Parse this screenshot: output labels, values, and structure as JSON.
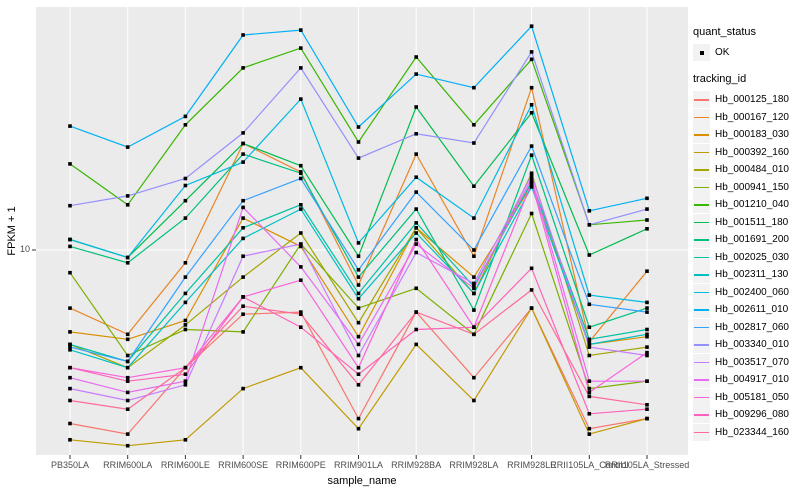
{
  "chart_data": {
    "type": "line",
    "xlabel": "sample_name",
    "ylabel": "FPKM + 1",
    "y_scale": "log10",
    "y_tick_labels": [
      "10"
    ],
    "y_tick_values": [
      10
    ],
    "grid": true,
    "legend_position": "right",
    "marker": "black-square",
    "quant_status_title": "quant_status",
    "quant_status_ok_label": "OK",
    "tracking_id_title": "tracking_id",
    "categories": [
      "PB350LA",
      "RRIM600LA",
      "RRIM600LE",
      "RRIM600SE",
      "RRIM600PE",
      "RRIM901LA",
      "RRIM928BA",
      "RRIM928LA",
      "RRIM928LE",
      "RRII105LA_Control",
      "RRII105LA_Stressed"
    ],
    "series": [
      {
        "name": "Hb_000125_180",
        "color": "#F8766D",
        "values": [
          2.4,
          2.2,
          3.8,
          5.9,
          6.0,
          2.5,
          6.0,
          3.5,
          6.2,
          2.3,
          2.5
        ]
      },
      {
        "name": "Hb_000167_120",
        "color": "#E88526",
        "values": [
          6.2,
          5.0,
          9.0,
          24.0,
          19.0,
          7.5,
          22.0,
          9.5,
          38.0,
          4.7,
          8.4
        ]
      },
      {
        "name": "Hb_000183_030",
        "color": "#D89000",
        "values": [
          5.1,
          4.8,
          5.6,
          13.0,
          10.3,
          4.9,
          12.0,
          8.0,
          17.0,
          4.6,
          4.9
        ]
      },
      {
        "name": "Hb_000392_160",
        "color": "#C09B00",
        "values": [
          2.1,
          2.0,
          2.1,
          3.2,
          3.8,
          2.3,
          4.6,
          2.9,
          6.2,
          2.2,
          2.5
        ]
      },
      {
        "name": "Hb_000484_010",
        "color": "#A3A500",
        "values": [
          4.6,
          3.8,
          5.4,
          8.0,
          11.5,
          5.5,
          12.0,
          7.0,
          18.8,
          4.2,
          4.5
        ]
      },
      {
        "name": "Hb_000941_150",
        "color": "#7CAE00",
        "values": [
          8.3,
          4.2,
          5.2,
          5.1,
          10.5,
          6.2,
          7.3,
          5.0,
          13.5,
          3.2,
          3.4
        ]
      },
      {
        "name": "Hb_001210_040",
        "color": "#39B600",
        "values": [
          20.3,
          14.5,
          28.0,
          44.7,
          52.6,
          24.3,
          48.9,
          28.0,
          48.0,
          12.3,
          12.8
        ]
      },
      {
        "name": "Hb_001511_180",
        "color": "#00BB4E",
        "values": [
          10.9,
          9.4,
          15.0,
          24.0,
          20.0,
          9.5,
          32.4,
          16.9,
          30.9,
          9.6,
          11.9
        ]
      },
      {
        "name": "Hb_001691_200",
        "color": "#00BF7D",
        "values": [
          10.3,
          9.0,
          13.0,
          22.0,
          18.8,
          8.0,
          14.0,
          6.1,
          21.8,
          5.3,
          6.2
        ]
      },
      {
        "name": "Hb_002025_030",
        "color": "#00C1A3",
        "values": [
          4.6,
          4.0,
          7.0,
          12.0,
          14.5,
          7.0,
          12.5,
          7.4,
          17.5,
          4.8,
          5.2
        ]
      },
      {
        "name": "Hb_002311_130",
        "color": "#00BFC4",
        "values": [
          4.4,
          3.8,
          6.5,
          11.0,
          14.0,
          6.7,
          11.5,
          7.0,
          16.8,
          4.6,
          5.0
        ]
      },
      {
        "name": "Hb_002400_060",
        "color": "#00BAE0",
        "values": [
          10.9,
          9.4,
          17.0,
          20.6,
          34.6,
          10.6,
          18.2,
          13.0,
          33.0,
          6.9,
          6.5
        ]
      },
      {
        "name": "Hb_002611_010",
        "color": "#00B0F6",
        "values": [
          27.7,
          23.3,
          30.0,
          58.6,
          61.0,
          27.5,
          42.5,
          38.0,
          63.0,
          13.8,
          15.3
        ]
      },
      {
        "name": "Hb_002817_060",
        "color": "#35A2FF",
        "values": [
          4.5,
          4.0,
          8.0,
          15.0,
          18.0,
          8.5,
          16.1,
          10.0,
          23.5,
          6.4,
          6.0
        ]
      },
      {
        "name": "Hb_003340_010",
        "color": "#9590FF",
        "values": [
          14.4,
          15.6,
          18.0,
          26.2,
          44.7,
          21.3,
          26.0,
          24.1,
          51.0,
          12.3,
          14.0
        ]
      },
      {
        "name": "Hb_003517_070",
        "color": "#C77CFF",
        "values": [
          3.2,
          2.9,
          3.3,
          9.5,
          10.5,
          4.2,
          9.8,
          7.6,
          18.5,
          4.5,
          4.2
        ]
      },
      {
        "name": "Hb_004917_010",
        "color": "#E76BF3",
        "values": [
          3.5,
          3.1,
          3.4,
          14.2,
          8.7,
          4.6,
          10.5,
          7.3,
          18.0,
          3.4,
          3.4
        ]
      },
      {
        "name": "Hb_005181_050",
        "color": "#FA62DB",
        "values": [
          3.8,
          3.5,
          3.8,
          6.8,
          7.8,
          3.8,
          10.9,
          5.3,
          17.4,
          3.1,
          4.3
        ]
      },
      {
        "name": "Hb_009296_080",
        "color": "#FF62BC",
        "values": [
          3.8,
          3.4,
          3.6,
          6.8,
          5.3,
          3.6,
          5.2,
          5.3,
          8.6,
          2.6,
          2.7
        ]
      },
      {
        "name": "Hb_023344_160",
        "color": "#FF6A98",
        "values": [
          2.9,
          2.7,
          3.8,
          6.3,
          5.9,
          3.3,
          6.0,
          5.0,
          7.2,
          3.0,
          2.8
        ]
      }
    ]
  },
  "colors": {
    "panel_bg": "#EBEBEB",
    "grid": "#FFFFFF",
    "tick": "#333333",
    "axis_text": "#4D4D4D",
    "title_text": "#000000",
    "marker": "#000000",
    "legend_key_bg": "#F2F2F2"
  }
}
